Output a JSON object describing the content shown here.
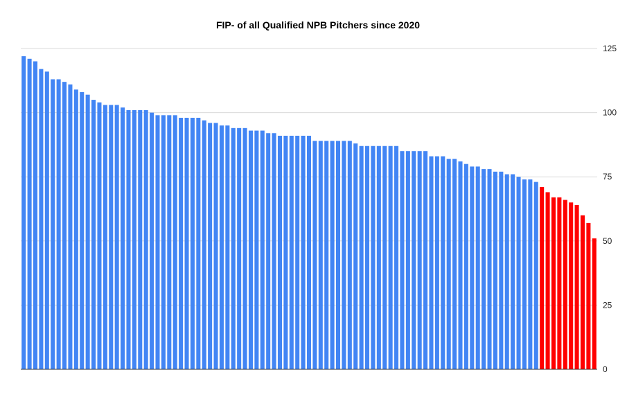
{
  "chart_data": {
    "type": "bar",
    "title": "FIP- of all Qualified NPB Pitchers since 2020",
    "xlabel": "",
    "ylabel": "",
    "ylim": [
      0,
      125
    ],
    "y_ticks": [
      "0",
      "25",
      "50",
      "75",
      "100",
      "125"
    ],
    "y_axis_side": "right",
    "grid": true,
    "legend": "none",
    "colors": {
      "above_threshold": "#4285f4",
      "below_threshold": "#ff0000",
      "grid": "#d9d9d9",
      "axis": "#333333"
    },
    "values": [
      122,
      121,
      120,
      117,
      116,
      113,
      113,
      112,
      111,
      109,
      108,
      107,
      105,
      104,
      103,
      103,
      103,
      102,
      101,
      101,
      101,
      101,
      100,
      99,
      99,
      99,
      99,
      98,
      98,
      98,
      98,
      97,
      96,
      96,
      95,
      95,
      94,
      94,
      94,
      93,
      93,
      93,
      92,
      92,
      91,
      91,
      91,
      91,
      91,
      91,
      89,
      89,
      89,
      89,
      89,
      89,
      89,
      88,
      87,
      87,
      87,
      87,
      87,
      87,
      87,
      85,
      85,
      85,
      85,
      85,
      83,
      83,
      83,
      82,
      82,
      81,
      80,
      79,
      79,
      78,
      78,
      77,
      77,
      76,
      76,
      75,
      74,
      74,
      73,
      71,
      69,
      67,
      67,
      66,
      65,
      64,
      60,
      57,
      51
    ],
    "highlight_count": 10
  }
}
